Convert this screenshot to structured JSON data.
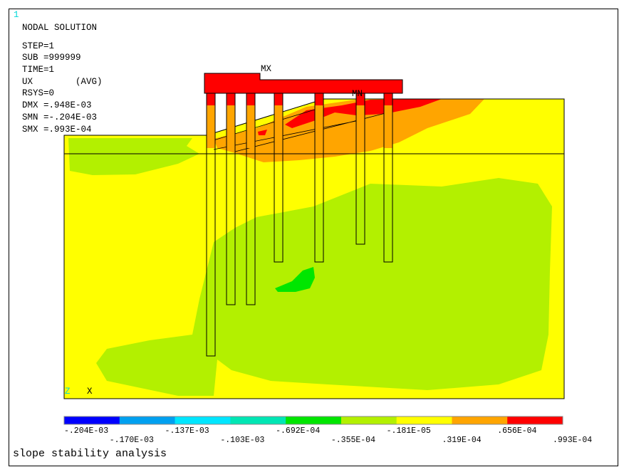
{
  "window_number": "1",
  "info": [
    "NODAL SOLUTION",
    "STEP=1",
    "SUB =999999",
    "TIME=1",
    "UX        (AVG)",
    "RSYS=0",
    "DMX =.948E-03",
    "SMN =-.204E-03",
    "SMX =.993E-04"
  ],
  "markers": {
    "max": "MX",
    "min": "MN"
  },
  "triad": {
    "z": "Z",
    "x": "X"
  },
  "legend": {
    "colors": [
      "#0000ff",
      "#00a0f0",
      "#00e6ff",
      "#00e6b4",
      "#00e600",
      "#b3f000",
      "#ffff00",
      "#ffa500",
      "#ff0000"
    ],
    "labels": [
      "-.204E-03",
      "-.170E-03",
      "-.137E-03",
      "-.103E-03",
      "-.692E-04",
      "-.355E-04",
      "-.181E-05",
      ".319E-04",
      ".656E-04",
      ".993E-04"
    ]
  },
  "caption": "slope stability analysis"
}
